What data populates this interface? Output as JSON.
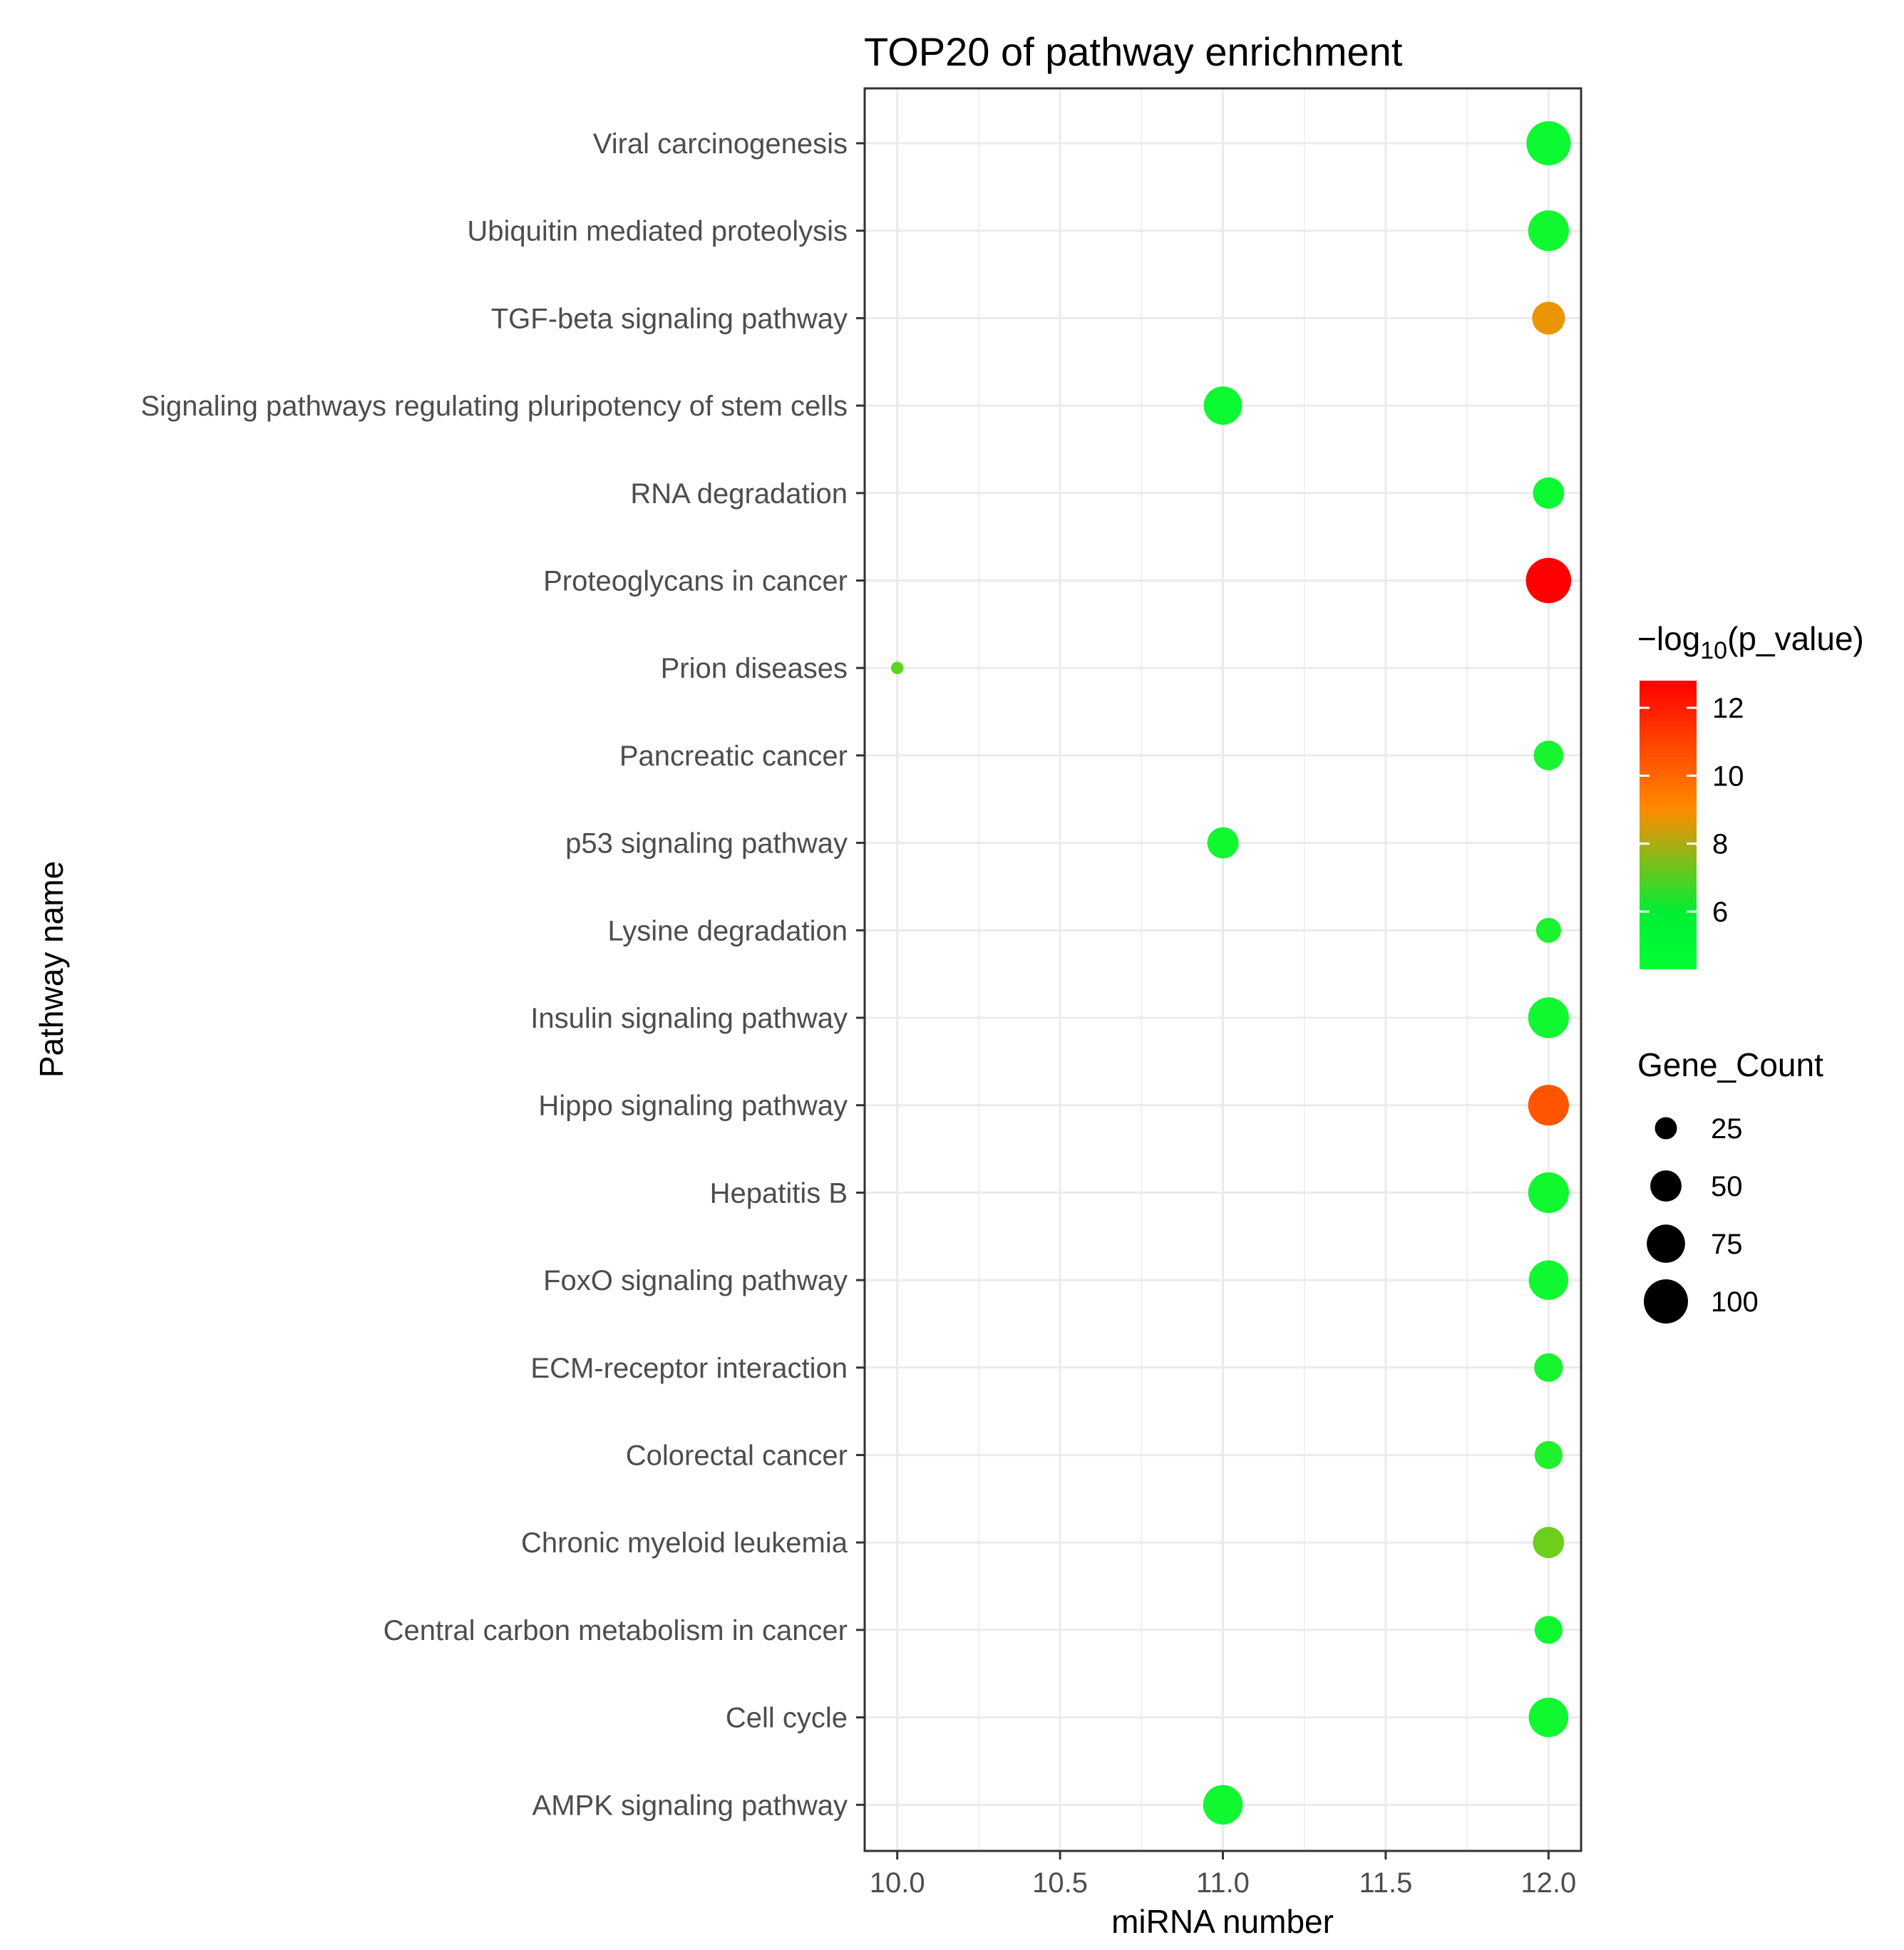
{
  "chart_data": {
    "type": "scatter",
    "title": "TOP20 of pathway enrichment",
    "xlabel": "miRNA number",
    "ylabel": "Pathway name",
    "xlim": [
      9.9,
      12.1
    ],
    "x_ticks": [
      "10.0",
      "10.5",
      "11.0",
      "11.5",
      "12.0"
    ],
    "x_tick_values": [
      10.0,
      10.5,
      11.0,
      11.5,
      12.0
    ],
    "color_legend": {
      "title_prefix": "−log",
      "title_sub": "10",
      "title_suffix": "(p_value)",
      "range": [
        4.3,
        12.8
      ],
      "ticks": [
        "12",
        "10",
        "8",
        "6"
      ],
      "tick_values": [
        12,
        10,
        8,
        6
      ],
      "low_color": "#00ff33",
      "mid_color": "#ff8c00",
      "high_color": "#ff0000"
    },
    "size_legend": {
      "title": "Gene_Count",
      "labels": [
        "25",
        "50",
        "75",
        "100"
      ],
      "values": [
        25,
        50,
        75,
        100
      ]
    },
    "points": [
      {
        "pathway": "Viral carcinogenesis",
        "mirna": 12,
        "gene_count": 100,
        "neg_log10_p": 4.5
      },
      {
        "pathway": "Ubiquitin mediated proteolysis",
        "mirna": 12,
        "gene_count": 85,
        "neg_log10_p": 4.6
      },
      {
        "pathway": "TGF-beta signaling pathway",
        "mirna": 12,
        "gene_count": 55,
        "neg_log10_p": 8.6
      },
      {
        "pathway": "Signaling pathways regulating pluripotency of stem cells",
        "mirna": 11,
        "gene_count": 75,
        "neg_log10_p": 4.5
      },
      {
        "pathway": "RNA degradation",
        "mirna": 12,
        "gene_count": 50,
        "neg_log10_p": 4.5
      },
      {
        "pathway": "Proteoglycans in cancer",
        "mirna": 12,
        "gene_count": 105,
        "neg_log10_p": 12.8
      },
      {
        "pathway": "Prion diseases",
        "mirna": 10,
        "gene_count": 8,
        "neg_log10_p": 6.0
      },
      {
        "pathway": "Pancreatic cancer",
        "mirna": 12,
        "gene_count": 45,
        "neg_log10_p": 4.7
      },
      {
        "pathway": "p53 signaling pathway",
        "mirna": 11,
        "gene_count": 50,
        "neg_log10_p": 4.6
      },
      {
        "pathway": "Lysine degradation",
        "mirna": 12,
        "gene_count": 32,
        "neg_log10_p": 4.8
      },
      {
        "pathway": "Insulin signaling pathway",
        "mirna": 12,
        "gene_count": 85,
        "neg_log10_p": 4.6
      },
      {
        "pathway": "Hippo signaling pathway",
        "mirna": 12,
        "gene_count": 85,
        "neg_log10_p": 10.5
      },
      {
        "pathway": "Hepatitis B",
        "mirna": 12,
        "gene_count": 85,
        "neg_log10_p": 4.6
      },
      {
        "pathway": "FoxO signaling pathway",
        "mirna": 12,
        "gene_count": 80,
        "neg_log10_p": 4.6
      },
      {
        "pathway": "ECM-receptor interaction",
        "mirna": 12,
        "gene_count": 42,
        "neg_log10_p": 4.7
      },
      {
        "pathway": "Colorectal cancer",
        "mirna": 12,
        "gene_count": 40,
        "neg_log10_p": 4.9
      },
      {
        "pathway": "Chronic myeloid leukemia",
        "mirna": 12,
        "gene_count": 50,
        "neg_log10_p": 6.3
      },
      {
        "pathway": "Central carbon metabolism in cancer",
        "mirna": 12,
        "gene_count": 40,
        "neg_log10_p": 4.6
      },
      {
        "pathway": "Cell cycle",
        "mirna": 12,
        "gene_count": 80,
        "neg_log10_p": 4.6
      },
      {
        "pathway": "AMPK signaling pathway",
        "mirna": 11,
        "gene_count": 80,
        "neg_log10_p": 4.6
      }
    ]
  }
}
